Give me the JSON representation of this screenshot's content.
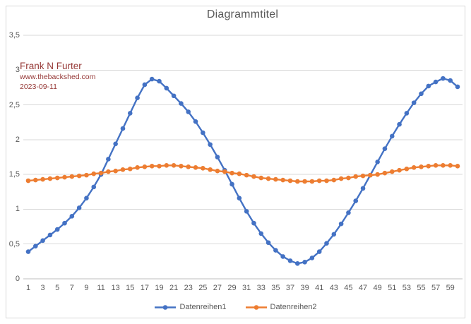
{
  "chart_data": {
    "type": "line",
    "title": "Diagrammtitel",
    "xlabel": "",
    "ylabel": "",
    "xlim": [
      1,
      60
    ],
    "ylim": [
      0,
      3.5
    ],
    "grid": "horizontal",
    "legend_position": "bottom",
    "decimal_separator": ",",
    "text_color": "#595959",
    "gridline_color": "#d9d9d9",
    "axis_line_color": "#bfbfbf",
    "x": [
      1,
      2,
      3,
      4,
      5,
      6,
      7,
      8,
      9,
      10,
      11,
      12,
      13,
      14,
      15,
      16,
      17,
      18,
      19,
      20,
      21,
      22,
      23,
      24,
      25,
      26,
      27,
      28,
      29,
      30,
      31,
      32,
      33,
      34,
      35,
      36,
      37,
      38,
      39,
      40,
      41,
      42,
      43,
      44,
      45,
      46,
      47,
      48,
      49,
      50,
      51,
      52,
      53,
      54,
      55,
      56,
      57,
      58,
      59,
      60
    ],
    "x_tick_labels": [
      "1",
      "3",
      "5",
      "7",
      "9",
      "11",
      "13",
      "15",
      "17",
      "19",
      "21",
      "23",
      "25",
      "27",
      "29",
      "31",
      "33",
      "35",
      "37",
      "39",
      "41",
      "43",
      "45",
      "47",
      "49",
      "51",
      "53",
      "55",
      "57",
      "59"
    ],
    "y_tick_values": [
      0,
      0.5,
      1,
      1.5,
      2,
      2.5,
      3,
      3.5
    ],
    "y_tick_labels": [
      "0",
      "0,5",
      "1",
      "1,5",
      "2",
      "2,5",
      "3",
      "3,5"
    ],
    "series": [
      {
        "name": "Datenreihen1",
        "color": "#4472C4",
        "marker": "circle",
        "values": [
          0.39,
          0.47,
          0.55,
          0.63,
          0.71,
          0.8,
          0.9,
          1.02,
          1.16,
          1.32,
          1.5,
          1.72,
          1.94,
          2.16,
          2.38,
          2.6,
          2.79,
          2.87,
          2.84,
          2.74,
          2.63,
          2.52,
          2.4,
          2.26,
          2.1,
          1.93,
          1.75,
          1.56,
          1.36,
          1.16,
          0.97,
          0.8,
          0.65,
          0.52,
          0.41,
          0.32,
          0.26,
          0.22,
          0.24,
          0.3,
          0.39,
          0.51,
          0.64,
          0.79,
          0.95,
          1.12,
          1.3,
          1.49,
          1.68,
          1.87,
          2.05,
          2.22,
          2.38,
          2.53,
          2.66,
          2.77,
          2.83,
          2.88,
          2.85,
          2.76
        ]
      },
      {
        "name": "Datenreihen2",
        "color": "#ED7D31",
        "marker": "circle",
        "values": [
          1.41,
          1.42,
          1.43,
          1.44,
          1.45,
          1.46,
          1.47,
          1.48,
          1.49,
          1.51,
          1.52,
          1.54,
          1.55,
          1.57,
          1.58,
          1.6,
          1.61,
          1.62,
          1.62,
          1.63,
          1.63,
          1.62,
          1.61,
          1.6,
          1.59,
          1.57,
          1.55,
          1.54,
          1.52,
          1.51,
          1.49,
          1.47,
          1.45,
          1.44,
          1.43,
          1.42,
          1.41,
          1.4,
          1.4,
          1.4,
          1.41,
          1.41,
          1.42,
          1.44,
          1.45,
          1.47,
          1.48,
          1.49,
          1.5,
          1.52,
          1.54,
          1.56,
          1.58,
          1.6,
          1.61,
          1.62,
          1.63,
          1.63,
          1.63,
          1.62
        ]
      }
    ],
    "annotations": {
      "author": "Frank N Furter",
      "website": "www.thebackshed.com",
      "date": "2023-09-11",
      "color": "#953735"
    }
  }
}
